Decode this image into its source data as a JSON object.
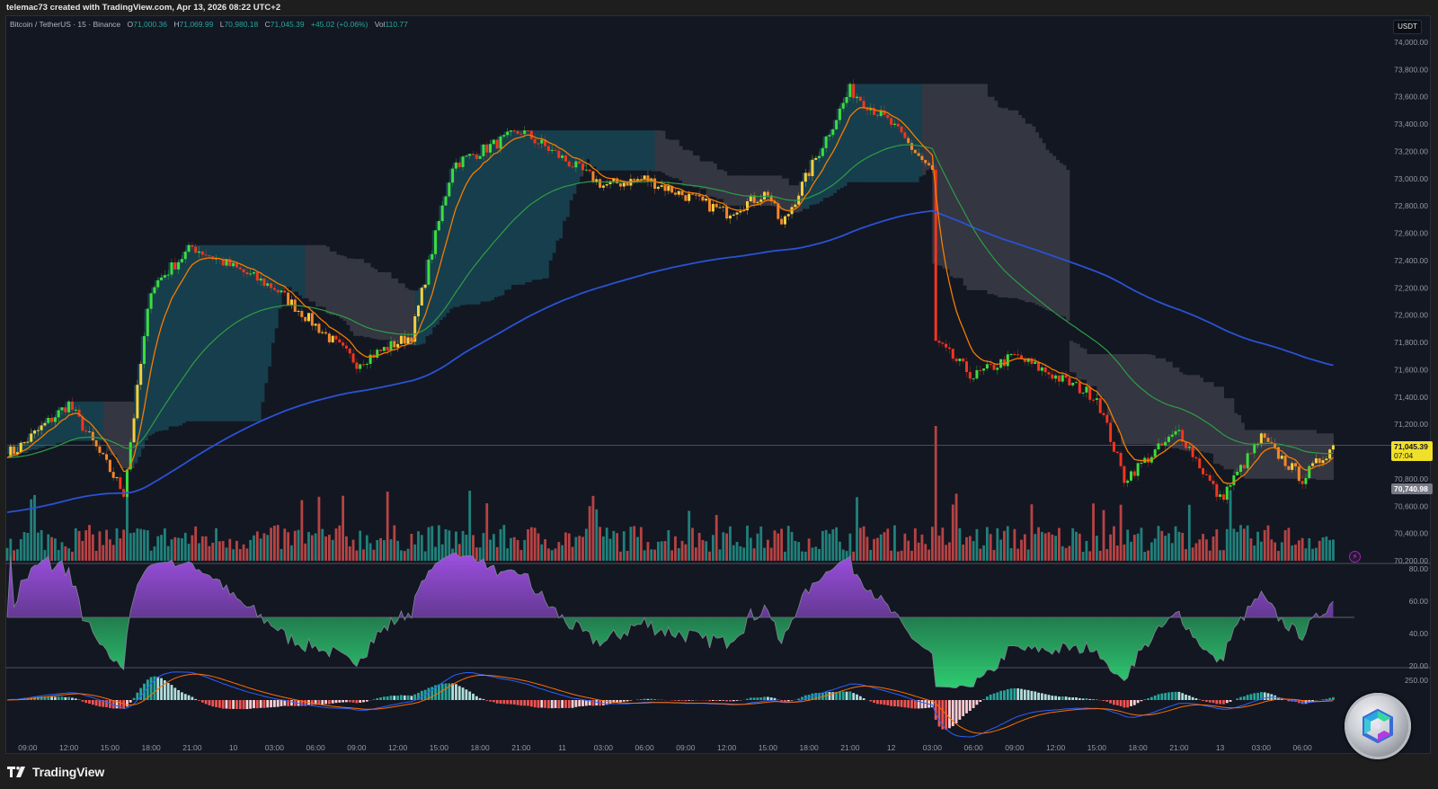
{
  "header": {
    "credit": "telemac73 created with TradingView.com, Apr 13, 2026 08:22 UTC+2"
  },
  "legend": {
    "symbol": "Bitcoin / TetherUS · 15 · Binance",
    "open_label": "O",
    "open": "71,000.36",
    "high_label": "H",
    "high": "71,069.99",
    "low_label": "L",
    "low": "70,980.18",
    "close_label": "C",
    "close": "71,045.39",
    "change": "+45.02 (+0.06%)",
    "vol_label": "Vol",
    "vol": "110.77"
  },
  "price_axis": {
    "currency": "USDT",
    "last_price": "71,045.39",
    "countdown": "07:04",
    "prev_marker": "70,740.98"
  },
  "footer": {
    "brand": "TradingView"
  },
  "colors": {
    "bg": "#131722",
    "up": "#26a69a",
    "down": "#ef5350",
    "ema_fast": "#f57c00",
    "ema_mid": "#2e9d45",
    "ema_slow": "#2a52d4",
    "cloud_bull": "#17404f",
    "cloud_bear": "#363843",
    "rsi_up": "#9c4fe0",
    "rsi_down": "#2ecc71"
  },
  "chart_data": [
    {
      "type": "candlestick",
      "title": "Bitcoin / TetherUS · 15 · Binance",
      "xlabel": "",
      "ylabel": "USDT",
      "ylim": [
        70200,
        74000
      ],
      "yticks": [
        "74,000.00",
        "73,800.00",
        "73,600.00",
        "73,400.00",
        "73,200.00",
        "73,000.00",
        "72,800.00",
        "72,600.00",
        "72,400.00",
        "72,200.00",
        "72,000.00",
        "71,800.00",
        "71,600.00",
        "71,400.00",
        "71,200.00",
        "71,000.00",
        "70,800.00",
        "70,600.00",
        "70,400.00",
        "70,200.00"
      ],
      "xticks": [
        "09:00",
        "12:00",
        "15:00",
        "18:00",
        "21:00",
        "10",
        "03:00",
        "06:00",
        "09:00",
        "12:00",
        "15:00",
        "18:00",
        "21:00",
        "11",
        "03:00",
        "06:00",
        "09:00",
        "12:00",
        "15:00",
        "18:00",
        "21:00",
        "12",
        "03:00",
        "06:00",
        "09:00",
        "12:00",
        "15:00",
        "18:00",
        "21:00",
        "13",
        "03:00",
        "06:00"
      ],
      "price_path_keypoints": [
        {
          "t": "Apr 9 08:00",
          "price": 71000
        },
        {
          "t": "Apr 9 12:00",
          "price": 71350
        },
        {
          "t": "Apr 9 16:00",
          "price": 70700
        },
        {
          "t": "Apr 9 18:00",
          "price": 72200
        },
        {
          "t": "Apr 9 21:00",
          "price": 72500
        },
        {
          "t": "Apr 10 03:00",
          "price": 72200
        },
        {
          "t": "Apr 10 09:00",
          "price": 71650
        },
        {
          "t": "Apr 10 13:00",
          "price": 71850
        },
        {
          "t": "Apr 10 16:00",
          "price": 73100
        },
        {
          "t": "Apr 10 21:00",
          "price": 73350
        },
        {
          "t": "Apr 11 03:00",
          "price": 72950
        },
        {
          "t": "Apr 11 06:00",
          "price": 73000
        },
        {
          "t": "Apr 11 12:00",
          "price": 72750
        },
        {
          "t": "Apr 11 15:00",
          "price": 72900
        },
        {
          "t": "Apr 11 16:00",
          "price": 72650
        },
        {
          "t": "Apr 11 21:00",
          "price": 73650
        },
        {
          "t": "Apr 12 00:00",
          "price": 73400
        },
        {
          "t": "Apr 12 03:00",
          "price": 73050
        },
        {
          "t": "Apr 12 03:15",
          "price": 71800
        },
        {
          "t": "Apr 12 06:00",
          "price": 71550
        },
        {
          "t": "Apr 12 09:00",
          "price": 71700
        },
        {
          "t": "Apr 12 15:00",
          "price": 71400
        },
        {
          "t": "Apr 12 17:00",
          "price": 70800
        },
        {
          "t": "Apr 12 21:00",
          "price": 71150
        },
        {
          "t": "Apr 13 00:00",
          "price": 70650
        },
        {
          "t": "Apr 13 03:00",
          "price": 71100
        },
        {
          "t": "Apr 13 06:00",
          "price": 70800
        },
        {
          "t": "Apr 13 08:15",
          "price": 71045.39
        }
      ],
      "series": [
        {
          "name": "EMA fast (orange)",
          "color": "#f57c00"
        },
        {
          "name": "EMA mid (green)",
          "color": "#2e9d45",
          "end_value": 71160
        },
        {
          "name": "EMA slow (blue)",
          "color": "#2a52d4",
          "peak_value": 72530,
          "end_value": 71670
        },
        {
          "name": "Trend cloud",
          "bull_color": "#17404f",
          "bear_color": "#363843"
        }
      ],
      "annotations": [
        "last price 71,045.39 (07:04)",
        "marker 70,740.98"
      ]
    },
    {
      "type": "bar",
      "title": "Volume",
      "note": "volume histogram overlaid at bottom of price pane, spike at Apr 12 03:00"
    },
    {
      "type": "area",
      "title": "RSI",
      "ylim": [
        20,
        80
      ],
      "yticks": [
        "80.00",
        "60.00",
        "40.00",
        "20.00"
      ],
      "midline": 50,
      "extremes": {
        "max": 76,
        "max_at": "Apr 9 18:00",
        "min": 24,
        "min_at": "Apr 12 03:30"
      },
      "last_value": 54
    },
    {
      "type": "bar",
      "title": "MACD",
      "yticks": [
        "250.00"
      ],
      "note": "histogram with MACD (blue) and signal (orange) lines; deepest trough Apr 12 05:00"
    }
  ]
}
